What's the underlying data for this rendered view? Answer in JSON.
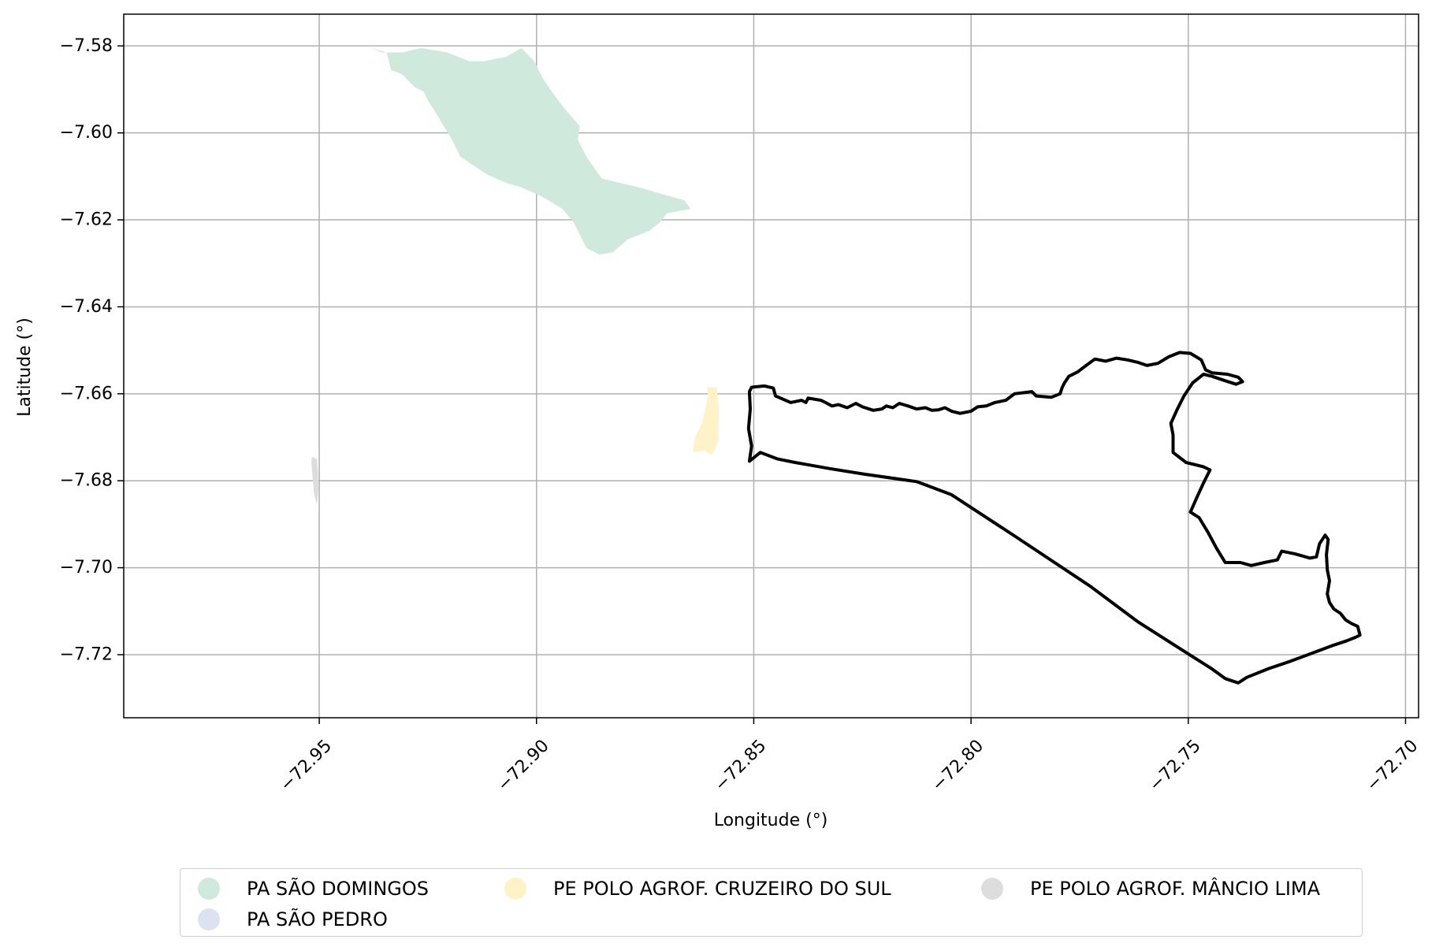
{
  "chart_data": {
    "type": "map",
    "xlabel": "Longitude (°)",
    "ylabel": "Latitude (°)",
    "xlim": [
      -72.995,
      -72.697
    ],
    "ylim": [
      -7.7345,
      -7.5727
    ],
    "grid": true,
    "legend_placement": "bottom-center",
    "x_ticks": [
      {
        "value": -72.95,
        "label": "−72.95"
      },
      {
        "value": -72.9,
        "label": "−72.90"
      },
      {
        "value": -72.85,
        "label": "−72.85"
      },
      {
        "value": -72.8,
        "label": "−72.80"
      },
      {
        "value": -72.75,
        "label": "−72.75"
      },
      {
        "value": -72.7,
        "label": "−72.70"
      }
    ],
    "y_ticks": [
      {
        "value": -7.58,
        "label": "−7.58"
      },
      {
        "value": -7.6,
        "label": "−7.60"
      },
      {
        "value": -7.62,
        "label": "−7.62"
      },
      {
        "value": -7.64,
        "label": "−7.64"
      },
      {
        "value": -7.66,
        "label": "−7.66"
      },
      {
        "value": -7.68,
        "label": "−7.68"
      },
      {
        "value": -7.7,
        "label": "−7.70"
      },
      {
        "value": -7.72,
        "label": "−7.72"
      }
    ],
    "legend": [
      {
        "label": "PA SÃO DOMINGOS",
        "color": "#cfeadc"
      },
      {
        "label": "PE POLO AGROF. CRUZEIRO DO SUL",
        "color": "#fdf3c6"
      },
      {
        "label": "PE POLO AGROF. MÂNCIO LIMA",
        "color": "#dddddd"
      },
      {
        "label": "PA SÃO PEDRO",
        "color": "#dde2f1"
      }
    ],
    "areas": [
      {
        "name": "PA SÃO DOMINGOS",
        "color": "#cfeadc",
        "coords": [
          [
            -72.9385,
            -7.5803
          ],
          [
            -72.9345,
            -7.5815
          ],
          [
            -72.9335,
            -7.5855
          ],
          [
            -72.931,
            -7.5865
          ],
          [
            -72.928,
            -7.5895
          ],
          [
            -72.926,
            -7.5905
          ],
          [
            -72.925,
            -7.5925
          ],
          [
            -72.9225,
            -7.5965
          ],
          [
            -72.9195,
            -7.6015
          ],
          [
            -72.9175,
            -7.6055
          ],
          [
            -72.9145,
            -7.6075
          ],
          [
            -72.9115,
            -7.6095
          ],
          [
            -72.907,
            -7.6115
          ],
          [
            -72.9035,
            -7.6125
          ],
          [
            -72.899,
            -7.6145
          ],
          [
            -72.894,
            -7.6175
          ],
          [
            -72.8915,
            -7.6205
          ],
          [
            -72.89,
            -7.6235
          ],
          [
            -72.8885,
            -7.6265
          ],
          [
            -72.8855,
            -7.628
          ],
          [
            -72.8825,
            -7.6275
          ],
          [
            -72.879,
            -7.6245
          ],
          [
            -72.874,
            -7.6225
          ],
          [
            -72.8715,
            -7.6205
          ],
          [
            -72.87,
            -7.6185
          ],
          [
            -72.8645,
            -7.6175
          ],
          [
            -72.866,
            -7.6155
          ],
          [
            -72.8765,
            -7.6125
          ],
          [
            -72.885,
            -7.6105
          ],
          [
            -72.8885,
            -7.6055
          ],
          [
            -72.8905,
            -7.6015
          ],
          [
            -72.89,
            -7.5985
          ],
          [
            -72.8935,
            -7.5945
          ],
          [
            -72.8965,
            -7.5905
          ],
          [
            -72.8985,
            -7.5875
          ],
          [
            -72.9005,
            -7.5835
          ],
          [
            -72.9035,
            -7.5805
          ],
          [
            -72.907,
            -7.5825
          ],
          [
            -72.912,
            -7.5835
          ],
          [
            -72.9155,
            -7.5835
          ],
          [
            -72.9205,
            -7.5815
          ],
          [
            -72.9265,
            -7.5805
          ],
          [
            -72.931,
            -7.5815
          ],
          [
            -72.9355,
            -7.5815
          ]
        ]
      },
      {
        "name": "PE POLO AGROF. CRUZEIRO DO SUL",
        "color": "#fdf3c6",
        "coords": [
          [
            -72.8608,
            -7.6585
          ],
          [
            -72.8585,
            -7.6585
          ],
          [
            -72.8583,
            -7.6605
          ],
          [
            -72.858,
            -7.664
          ],
          [
            -72.8582,
            -7.6675
          ],
          [
            -72.858,
            -7.6705
          ],
          [
            -72.859,
            -7.673
          ],
          [
            -72.8598,
            -7.674
          ],
          [
            -72.8615,
            -7.673
          ],
          [
            -72.864,
            -7.6735
          ],
          [
            -72.8635,
            -7.67
          ],
          [
            -72.862,
            -7.667
          ],
          [
            -72.861,
            -7.663
          ],
          [
            -72.8605,
            -7.6605
          ]
        ]
      },
      {
        "name": "PE POLO AGROF. MÂNCIO LIMA",
        "color": "#dddddd",
        "coords": [
          [
            -72.9517,
            -7.6745
          ],
          [
            -72.9505,
            -7.675
          ],
          [
            -72.9503,
            -7.6785
          ],
          [
            -72.9502,
            -7.682
          ],
          [
            -72.9505,
            -7.6855
          ],
          [
            -72.9512,
            -7.683
          ],
          [
            -72.9515,
            -7.6795
          ],
          [
            -72.9518,
            -7.676
          ]
        ]
      }
    ],
    "outline": {
      "color": "#000000",
      "coords": [
        [
          -72.851,
          -7.6595
        ],
        [
          -72.8505,
          -7.6585
        ],
        [
          -72.8475,
          -7.6582
        ],
        [
          -72.8455,
          -7.6587
        ],
        [
          -72.845,
          -7.6605
        ],
        [
          -72.8415,
          -7.662
        ],
        [
          -72.839,
          -7.6615
        ],
        [
          -72.838,
          -7.662
        ],
        [
          -72.8375,
          -7.661
        ],
        [
          -72.8345,
          -7.6615
        ],
        [
          -72.8335,
          -7.662
        ],
        [
          -72.832,
          -7.6628
        ],
        [
          -72.8305,
          -7.6625
        ],
        [
          -72.8285,
          -7.6632
        ],
        [
          -72.8265,
          -7.6622
        ],
        [
          -72.825,
          -7.663
        ],
        [
          -72.8225,
          -7.6638
        ],
        [
          -72.8205,
          -7.6635
        ],
        [
          -72.8195,
          -7.6628
        ],
        [
          -72.818,
          -7.6632
        ],
        [
          -72.8165,
          -7.6622
        ],
        [
          -72.8145,
          -7.6628
        ],
        [
          -72.8125,
          -7.6635
        ],
        [
          -72.8105,
          -7.6632
        ],
        [
          -72.809,
          -7.6638
        ],
        [
          -72.8075,
          -7.6637
        ],
        [
          -72.806,
          -7.6632
        ],
        [
          -72.8045,
          -7.664
        ],
        [
          -72.8025,
          -7.6645
        ],
        [
          -72.8,
          -7.664
        ],
        [
          -72.7985,
          -7.663
        ],
        [
          -72.7965,
          -7.6628
        ],
        [
          -72.7945,
          -7.662
        ],
        [
          -72.792,
          -7.6615
        ],
        [
          -72.79,
          -7.66
        ],
        [
          -72.786,
          -7.6595
        ],
        [
          -72.785,
          -7.6605
        ],
        [
          -72.7815,
          -7.6608
        ],
        [
          -72.7795,
          -7.66
        ],
        [
          -72.779,
          -7.6585
        ],
        [
          -72.7785,
          -7.6575
        ],
        [
          -72.7775,
          -7.656
        ],
        [
          -72.7755,
          -7.655
        ],
        [
          -72.7735,
          -7.6535
        ],
        [
          -72.7715,
          -7.652
        ],
        [
          -72.769,
          -7.6525
        ],
        [
          -72.7665,
          -7.6518
        ],
        [
          -72.764,
          -7.6522
        ],
        [
          -72.7615,
          -7.6528
        ],
        [
          -72.7595,
          -7.6535
        ],
        [
          -72.757,
          -7.653
        ],
        [
          -72.7545,
          -7.6515
        ],
        [
          -72.752,
          -7.6505
        ],
        [
          -72.7495,
          -7.6507
        ],
        [
          -72.747,
          -7.6522
        ],
        [
          -72.746,
          -7.6545
        ],
        [
          -72.7445,
          -7.6552
        ],
        [
          -72.741,
          -7.6555
        ],
        [
          -72.7385,
          -7.6562
        ],
        [
          -72.7375,
          -7.6572
        ],
        [
          -72.739,
          -7.6578
        ],
        [
          -72.7415,
          -7.657
        ],
        [
          -72.7445,
          -7.656
        ],
        [
          -72.7465,
          -7.6555
        ],
        [
          -72.749,
          -7.6575
        ],
        [
          -72.751,
          -7.6605
        ],
        [
          -72.7525,
          -7.6635
        ],
        [
          -72.754,
          -7.6668
        ],
        [
          -72.7535,
          -7.6695
        ],
        [
          -72.7535,
          -7.6735
        ],
        [
          -72.7505,
          -7.6758
        ],
        [
          -72.7465,
          -7.6768
        ],
        [
          -72.745,
          -7.6775
        ],
        [
          -72.7465,
          -7.6805
        ],
        [
          -72.748,
          -7.6838
        ],
        [
          -72.7495,
          -7.6872
        ],
        [
          -72.7475,
          -7.6885
        ],
        [
          -72.7455,
          -7.6918
        ],
        [
          -72.7435,
          -7.6955
        ],
        [
          -72.7415,
          -7.6988
        ],
        [
          -72.738,
          -7.6988
        ],
        [
          -72.7355,
          -7.6995
        ],
        [
          -72.7325,
          -7.6988
        ],
        [
          -72.7295,
          -7.6982
        ],
        [
          -72.7285,
          -7.6962
        ],
        [
          -72.7255,
          -7.6968
        ],
        [
          -72.722,
          -7.6978
        ],
        [
          -72.7205,
          -7.6975
        ],
        [
          -72.7198,
          -7.6945
        ],
        [
          -72.7185,
          -7.6925
        ],
        [
          -72.7178,
          -7.6935
        ],
        [
          -72.7182,
          -7.697
        ],
        [
          -72.718,
          -7.7005
        ],
        [
          -72.7175,
          -7.703
        ],
        [
          -72.718,
          -7.706
        ],
        [
          -72.7175,
          -7.708
        ],
        [
          -72.7165,
          -7.7095
        ],
        [
          -72.715,
          -7.7105
        ],
        [
          -72.7138,
          -7.712
        ],
        [
          -72.7125,
          -7.7128
        ],
        [
          -72.711,
          -7.7135
        ],
        [
          -72.7105,
          -7.7155
        ],
        [
          -72.7115,
          -7.716
        ],
        [
          -72.7135,
          -7.7168
        ],
        [
          -72.7165,
          -7.7178
        ],
        [
          -72.7265,
          -7.7215
        ],
        [
          -72.7315,
          -7.7232
        ],
        [
          -72.7365,
          -7.7252
        ],
        [
          -72.7385,
          -7.7265
        ],
        [
          -72.7415,
          -7.7255
        ],
        [
          -72.7445,
          -7.7233
        ],
        [
          -72.7505,
          -7.7195
        ],
        [
          -72.7615,
          -7.7125
        ],
        [
          -72.7725,
          -7.7043
        ],
        [
          -72.7895,
          -7.693
        ],
        [
          -72.8045,
          -7.6832
        ],
        [
          -72.8125,
          -7.6802
        ],
        [
          -72.8245,
          -7.6785
        ],
        [
          -72.8325,
          -7.6772
        ],
        [
          -72.8405,
          -7.6758
        ],
        [
          -72.8445,
          -7.675
        ],
        [
          -72.8485,
          -7.6735
        ],
        [
          -72.851,
          -7.6755
        ],
        [
          -72.8505,
          -7.672
        ],
        [
          -72.8512,
          -7.668
        ],
        [
          -72.8508,
          -7.6635
        ]
      ]
    }
  }
}
